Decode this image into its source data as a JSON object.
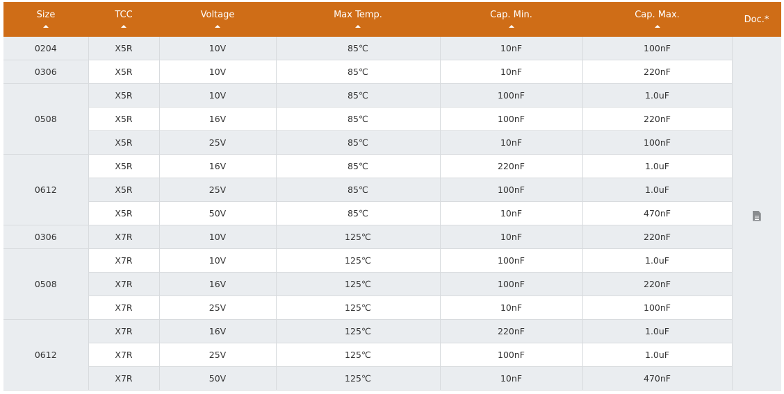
{
  "headers": [
    "Size",
    "TCC",
    "Voltage",
    "Max Temp.",
    "Cap. Min.",
    "Cap. Max.",
    "Doc.*"
  ],
  "doc_icon": "document-icon",
  "colors": {
    "header_bg": "#cf6d17",
    "row_alt": "#eaedf0"
  },
  "groups": [
    {
      "size": "0204",
      "rows": [
        [
          "X5R",
          "10V",
          "85℃",
          "10nF",
          "100nF"
        ]
      ]
    },
    {
      "size": "0306",
      "rows": [
        [
          "X5R",
          "10V",
          "85℃",
          "10nF",
          "220nF"
        ]
      ]
    },
    {
      "size": "0508",
      "rows": [
        [
          "X5R",
          "10V",
          "85℃",
          "100nF",
          "1.0uF"
        ],
        [
          "X5R",
          "16V",
          "85℃",
          "100nF",
          "220nF"
        ],
        [
          "X5R",
          "25V",
          "85℃",
          "10nF",
          "100nF"
        ]
      ]
    },
    {
      "size": "0612",
      "rows": [
        [
          "X5R",
          "16V",
          "85℃",
          "220nF",
          "1.0uF"
        ],
        [
          "X5R",
          "25V",
          "85℃",
          "100nF",
          "1.0uF"
        ],
        [
          "X5R",
          "50V",
          "85℃",
          "10nF",
          "470nF"
        ]
      ]
    },
    {
      "size": "0306",
      "rows": [
        [
          "X7R",
          "10V",
          "125℃",
          "10nF",
          "220nF"
        ]
      ]
    },
    {
      "size": "0508",
      "rows": [
        [
          "X7R",
          "10V",
          "125℃",
          "100nF",
          "1.0uF"
        ],
        [
          "X7R",
          "16V",
          "125℃",
          "100nF",
          "220nF"
        ],
        [
          "X7R",
          "25V",
          "125℃",
          "10nF",
          "100nF"
        ]
      ]
    },
    {
      "size": "0612",
      "rows": [
        [
          "X7R",
          "16V",
          "125℃",
          "220nF",
          "1.0uF"
        ],
        [
          "X7R",
          "25V",
          "125℃",
          "100nF",
          "1.0uF"
        ],
        [
          "X7R",
          "50V",
          "125℃",
          "10nF",
          "470nF"
        ]
      ]
    }
  ]
}
